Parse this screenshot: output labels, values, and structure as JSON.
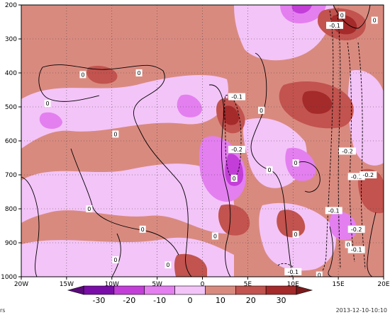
{
  "chart_data": {
    "type": "heatmap",
    "title": "",
    "xlabel": "",
    "ylabel": "",
    "x_ticks": [
      "20W",
      "15W",
      "10W",
      "5W",
      "0",
      "5E",
      "10E",
      "15E",
      "20E"
    ],
    "x_range": [
      -20,
      20
    ],
    "y_ticks": [
      "200",
      "300",
      "400",
      "500",
      "600",
      "700",
      "800",
      "900",
      "1000"
    ],
    "y_range": [
      200,
      1000
    ],
    "y_axis": "pressure, 200 at top, 1000 at bottom",
    "grid": true,
    "colorbar": {
      "ticks": [
        "-30",
        "-20",
        "-10",
        "0",
        "10",
        "20",
        "30"
      ],
      "colors": [
        "#7a0da8",
        "#c33ed8",
        "#e47ff0",
        "#f3c4f8",
        "#d98a7f",
        "#c2534e",
        "#a52a2a"
      ]
    },
    "fill_levels": [
      {
        "name": "strong-purple",
        "color": "#c33ed8"
      },
      {
        "name": "purple",
        "color": "#e47ff0"
      },
      {
        "name": "light-pink",
        "color": "#f3c4f8"
      },
      {
        "name": "salmon",
        "color": "#d98a7f"
      },
      {
        "name": "red",
        "color": "#c2534e"
      },
      {
        "name": "dark-red",
        "color": "#a52a2a"
      }
    ],
    "contour_labels": [
      {
        "text": "0",
        "x": -13.2,
        "y": 405
      },
      {
        "text": "0",
        "x": -7.0,
        "y": 400
      },
      {
        "text": "0",
        "x": -17.1,
        "y": 490
      },
      {
        "text": "0",
        "x": -9.6,
        "y": 580
      },
      {
        "text": "0",
        "x": -12.5,
        "y": 800
      },
      {
        "text": "0",
        "x": -6.6,
        "y": 860
      },
      {
        "text": "0",
        "x": -3.8,
        "y": 965
      },
      {
        "text": "0",
        "x": -9.6,
        "y": 950
      },
      {
        "text": "0",
        "x": 1.4,
        "y": 880
      },
      {
        "text": "0",
        "x": 3.5,
        "y": 710
      },
      {
        "text": "0",
        "x": 6.5,
        "y": 510
      },
      {
        "text": "0",
        "x": 7.4,
        "y": 685
      },
      {
        "text": "0",
        "x": 10.3,
        "y": 875
      },
      {
        "text": "0",
        "x": 10.3,
        "y": 665
      },
      {
        "text": "0",
        "x": 12.9,
        "y": 995
      },
      {
        "text": "0",
        "x": 16.1,
        "y": 905
      },
      {
        "text": "0",
        "x": 15.4,
        "y": 230
      },
      {
        "text": "0",
        "x": 19.0,
        "y": 245
      },
      {
        "text": "-0.1",
        "x": 3.8,
        "y": 470
      },
      {
        "text": "-0.2",
        "x": 3.8,
        "y": 625
      },
      {
        "text": "-0.1",
        "x": 14.6,
        "y": 260
      },
      {
        "text": "-0.2",
        "x": 16.0,
        "y": 630
      },
      {
        "text": "-0.1",
        "x": 17.0,
        "y": 705
      },
      {
        "text": "-0.2",
        "x": 18.3,
        "y": 700
      },
      {
        "text": "-0.1",
        "x": 14.5,
        "y": 805
      },
      {
        "text": "-0.2",
        "x": 17.0,
        "y": 860
      },
      {
        "text": "-0.1",
        "x": 17.0,
        "y": 920
      },
      {
        "text": "-0.1",
        "x": 10.0,
        "y": 985
      }
    ]
  },
  "footer": {
    "left": "rs",
    "right": "2013-12-10-10:10"
  }
}
